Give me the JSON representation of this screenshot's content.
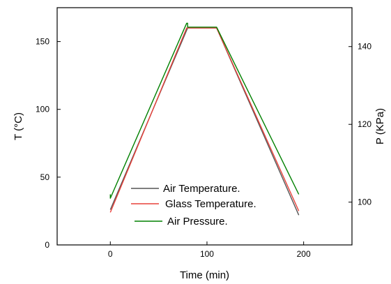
{
  "chart_data": {
    "type": "line",
    "xlabel": "Time (min)",
    "ylabel_left": "T (°C)",
    "ylabel_right": "P (KPa)",
    "xlim": [
      -55,
      250
    ],
    "ylim_left": [
      0,
      175
    ],
    "ylim_right": [
      89,
      150
    ],
    "x_ticks": [
      0,
      100,
      200
    ],
    "y_ticks_left": [
      0,
      50,
      100,
      150
    ],
    "y_ticks_right": [
      100,
      120,
      140
    ],
    "x_tick_labels": [
      "0",
      "100",
      "200"
    ],
    "y_tick_labels_left": [
      "0",
      "50",
      "100",
      "150"
    ],
    "y_tick_labels_right": [
      "100",
      "120",
      "140"
    ],
    "legend_position": "bottom-center",
    "series": [
      {
        "name": "Air Temperature.",
        "axis": "left",
        "color": "#555555",
        "x": [
          0,
          80,
          110,
          195
        ],
        "y": [
          26,
          160,
          160,
          22
        ]
      },
      {
        "name": "Glass Temperature.",
        "axis": "left",
        "color": "#e8403a",
        "x": [
          0,
          79,
          110,
          195
        ],
        "y": [
          24,
          160,
          160,
          25
        ]
      },
      {
        "name": "Air Pressure.",
        "axis": "right",
        "color": "#008000",
        "x": [
          0,
          0,
          79,
          80,
          80,
          110,
          195,
          195
        ],
        "y": [
          102,
          101,
          146,
          146,
          145,
          145,
          102,
          102
        ]
      }
    ]
  }
}
